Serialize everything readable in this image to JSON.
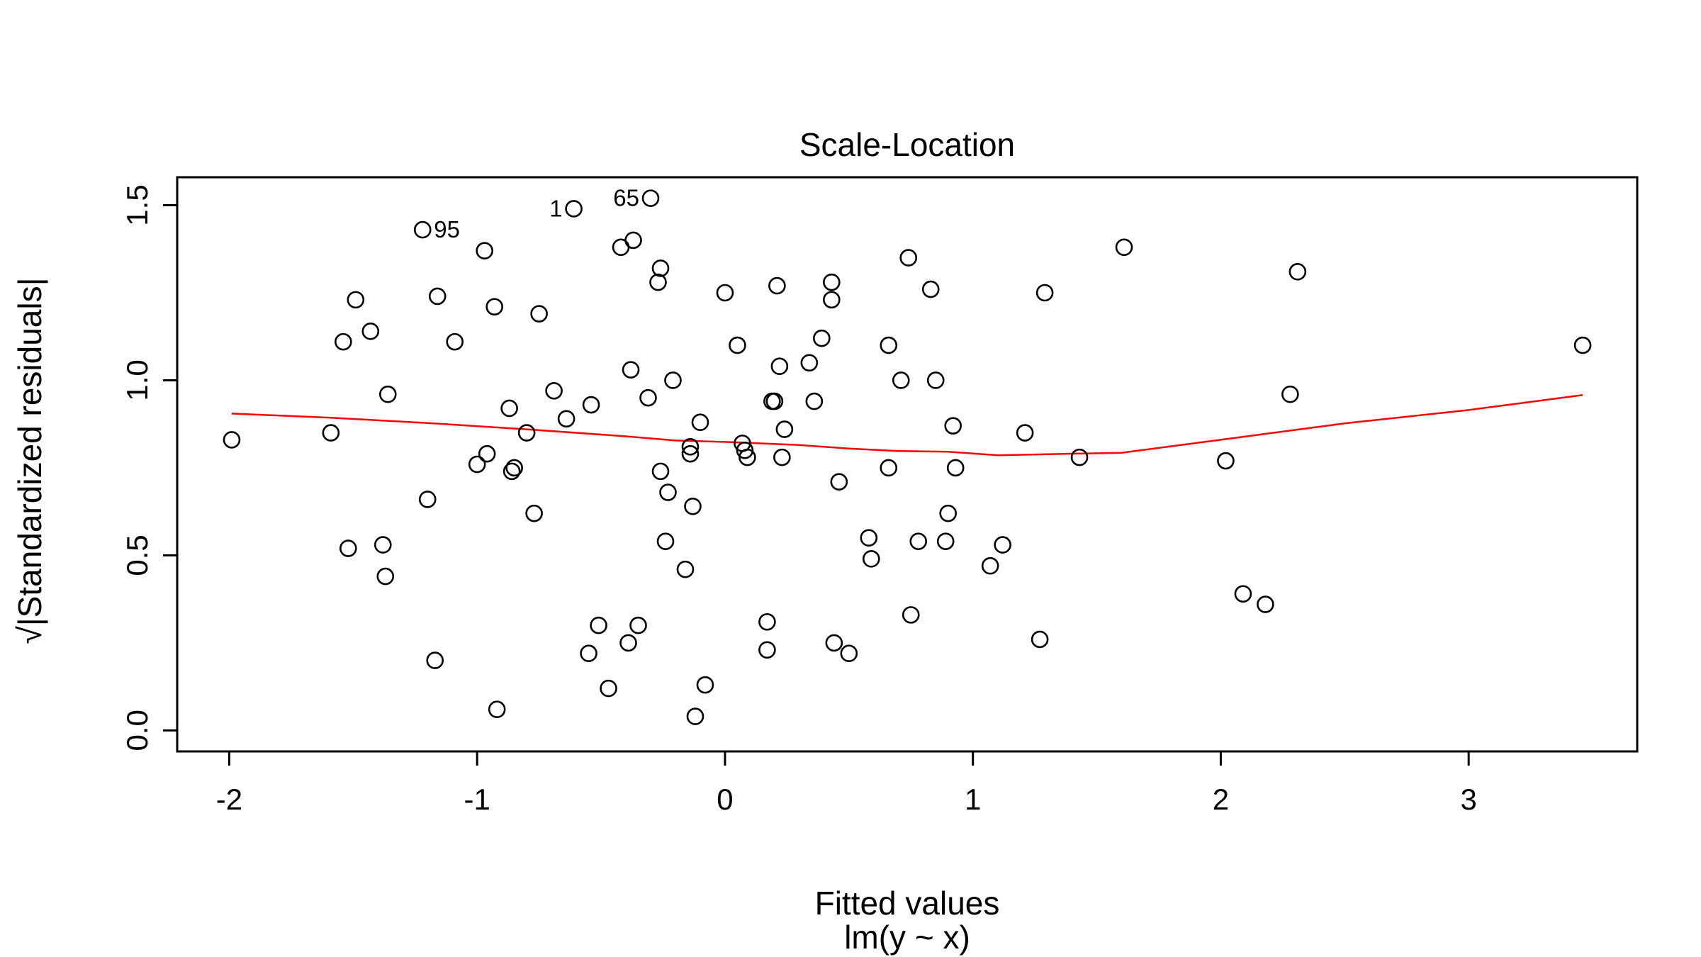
{
  "chart_data": {
    "type": "scatter",
    "title": "Scale-Location",
    "xlabel": "Fitted values",
    "subtitle": "lm(y ~ x)",
    "ylabel": "√|Standardized residuals|",
    "xlim": [
      -2.21,
      3.68
    ],
    "ylim": [
      -0.06,
      1.58
    ],
    "x_ticks": [
      -2,
      -1,
      0,
      1,
      2,
      3
    ],
    "x_tick_labels": [
      "-2",
      "-1",
      "0",
      "1",
      "2",
      "3"
    ],
    "y_ticks": [
      0.0,
      0.5,
      1.0,
      1.5
    ],
    "y_tick_labels": [
      "0.0",
      "0.5",
      "1.0",
      "1.5"
    ],
    "grid": false,
    "point_color": "#000000",
    "smooth_color": "#ff0000",
    "points": [
      {
        "x": -1.99,
        "y": 0.83
      },
      {
        "x": -1.59,
        "y": 0.85
      },
      {
        "x": -1.54,
        "y": 1.11
      },
      {
        "x": -1.52,
        "y": 0.52
      },
      {
        "x": -1.49,
        "y": 1.23
      },
      {
        "x": -1.43,
        "y": 1.14
      },
      {
        "x": -1.38,
        "y": 0.53
      },
      {
        "x": -1.37,
        "y": 0.44
      },
      {
        "x": -1.36,
        "y": 0.96
      },
      {
        "x": -1.22,
        "y": 1.43
      },
      {
        "x": -1.2,
        "y": 0.66
      },
      {
        "x": -1.17,
        "y": 0.2
      },
      {
        "x": -1.16,
        "y": 1.24
      },
      {
        "x": -1.09,
        "y": 1.11
      },
      {
        "x": -1.0,
        "y": 0.76
      },
      {
        "x": -0.97,
        "y": 1.37
      },
      {
        "x": -0.96,
        "y": 0.79
      },
      {
        "x": -0.93,
        "y": 1.21
      },
      {
        "x": -0.92,
        "y": 0.06
      },
      {
        "x": -0.87,
        "y": 0.92
      },
      {
        "x": -0.86,
        "y": 0.74
      },
      {
        "x": -0.85,
        "y": 0.75
      },
      {
        "x": -0.8,
        "y": 0.85
      },
      {
        "x": -0.77,
        "y": 0.62
      },
      {
        "x": -0.75,
        "y": 1.19
      },
      {
        "x": -0.69,
        "y": 0.97
      },
      {
        "x": -0.64,
        "y": 0.89
      },
      {
        "x": -0.61,
        "y": 1.49
      },
      {
        "x": -0.55,
        "y": 0.22
      },
      {
        "x": -0.54,
        "y": 0.93
      },
      {
        "x": -0.51,
        "y": 0.3
      },
      {
        "x": -0.47,
        "y": 0.12
      },
      {
        "x": -0.42,
        "y": 1.38
      },
      {
        "x": -0.39,
        "y": 0.25
      },
      {
        "x": -0.38,
        "y": 1.03
      },
      {
        "x": -0.37,
        "y": 1.4
      },
      {
        "x": -0.35,
        "y": 0.3
      },
      {
        "x": -0.31,
        "y": 0.95
      },
      {
        "x": -0.3,
        "y": 1.52
      },
      {
        "x": -0.27,
        "y": 1.28
      },
      {
        "x": -0.26,
        "y": 1.32
      },
      {
        "x": -0.26,
        "y": 0.74
      },
      {
        "x": -0.24,
        "y": 0.54
      },
      {
        "x": -0.23,
        "y": 0.68
      },
      {
        "x": -0.21,
        "y": 1.0
      },
      {
        "x": -0.16,
        "y": 0.46
      },
      {
        "x": -0.14,
        "y": 0.81
      },
      {
        "x": -0.14,
        "y": 0.79
      },
      {
        "x": -0.13,
        "y": 0.64
      },
      {
        "x": -0.12,
        "y": 0.04
      },
      {
        "x": -0.1,
        "y": 0.88
      },
      {
        "x": -0.08,
        "y": 0.13
      },
      {
        "x": 0.0,
        "y": 1.25
      },
      {
        "x": 0.05,
        "y": 1.1
      },
      {
        "x": 0.07,
        "y": 0.82
      },
      {
        "x": 0.08,
        "y": 0.8
      },
      {
        "x": 0.09,
        "y": 0.78
      },
      {
        "x": 0.17,
        "y": 0.31
      },
      {
        "x": 0.17,
        "y": 0.23
      },
      {
        "x": 0.19,
        "y": 0.94
      },
      {
        "x": 0.2,
        "y": 0.94
      },
      {
        "x": 0.21,
        "y": 1.27
      },
      {
        "x": 0.22,
        "y": 1.04
      },
      {
        "x": 0.23,
        "y": 0.78
      },
      {
        "x": 0.24,
        "y": 0.86
      },
      {
        "x": 0.34,
        "y": 1.05
      },
      {
        "x": 0.36,
        "y": 0.94
      },
      {
        "x": 0.39,
        "y": 1.12
      },
      {
        "x": 0.43,
        "y": 1.28
      },
      {
        "x": 0.43,
        "y": 1.23
      },
      {
        "x": 0.44,
        "y": 0.25
      },
      {
        "x": 0.46,
        "y": 0.71
      },
      {
        "x": 0.5,
        "y": 0.22
      },
      {
        "x": 0.58,
        "y": 0.55
      },
      {
        "x": 0.59,
        "y": 0.49
      },
      {
        "x": 0.66,
        "y": 1.1
      },
      {
        "x": 0.66,
        "y": 0.75
      },
      {
        "x": 0.71,
        "y": 1.0
      },
      {
        "x": 0.74,
        "y": 1.35
      },
      {
        "x": 0.75,
        "y": 0.33
      },
      {
        "x": 0.78,
        "y": 0.54
      },
      {
        "x": 0.83,
        "y": 1.26
      },
      {
        "x": 0.85,
        "y": 1.0
      },
      {
        "x": 0.89,
        "y": 0.54
      },
      {
        "x": 0.9,
        "y": 0.62
      },
      {
        "x": 0.92,
        "y": 0.87
      },
      {
        "x": 0.93,
        "y": 0.75
      },
      {
        "x": 1.07,
        "y": 0.47
      },
      {
        "x": 1.12,
        "y": 0.53
      },
      {
        "x": 1.21,
        "y": 0.85
      },
      {
        "x": 1.27,
        "y": 0.26
      },
      {
        "x": 1.29,
        "y": 1.25
      },
      {
        "x": 1.43,
        "y": 0.78
      },
      {
        "x": 1.61,
        "y": 1.38
      },
      {
        "x": 2.02,
        "y": 0.77
      },
      {
        "x": 2.09,
        "y": 0.39
      },
      {
        "x": 2.18,
        "y": 0.36
      },
      {
        "x": 2.28,
        "y": 0.96
      },
      {
        "x": 2.31,
        "y": 1.31
      },
      {
        "x": 3.46,
        "y": 1.1
      }
    ],
    "point_labels": [
      {
        "text": "95",
        "x": -1.22,
        "y": 1.43,
        "side": "right"
      },
      {
        "text": "1",
        "x": -0.61,
        "y": 1.49,
        "side": "left"
      },
      {
        "text": "65",
        "x": -0.3,
        "y": 1.52,
        "side": "left"
      }
    ],
    "smooth_line": [
      {
        "x": -1.99,
        "y": 0.905
      },
      {
        "x": -1.59,
        "y": 0.893
      },
      {
        "x": -1.2,
        "y": 0.878
      },
      {
        "x": -0.8,
        "y": 0.86
      },
      {
        "x": -0.4,
        "y": 0.84
      },
      {
        "x": -0.2,
        "y": 0.828
      },
      {
        "x": 0.0,
        "y": 0.824
      },
      {
        "x": 0.3,
        "y": 0.815
      },
      {
        "x": 0.5,
        "y": 0.805
      },
      {
        "x": 0.7,
        "y": 0.798
      },
      {
        "x": 0.9,
        "y": 0.796
      },
      {
        "x": 1.1,
        "y": 0.786
      },
      {
        "x": 1.3,
        "y": 0.789
      },
      {
        "x": 1.6,
        "y": 0.793
      },
      {
        "x": 2.0,
        "y": 0.83
      },
      {
        "x": 2.5,
        "y": 0.877
      },
      {
        "x": 3.0,
        "y": 0.915
      },
      {
        "x": 3.46,
        "y": 0.958
      }
    ]
  }
}
